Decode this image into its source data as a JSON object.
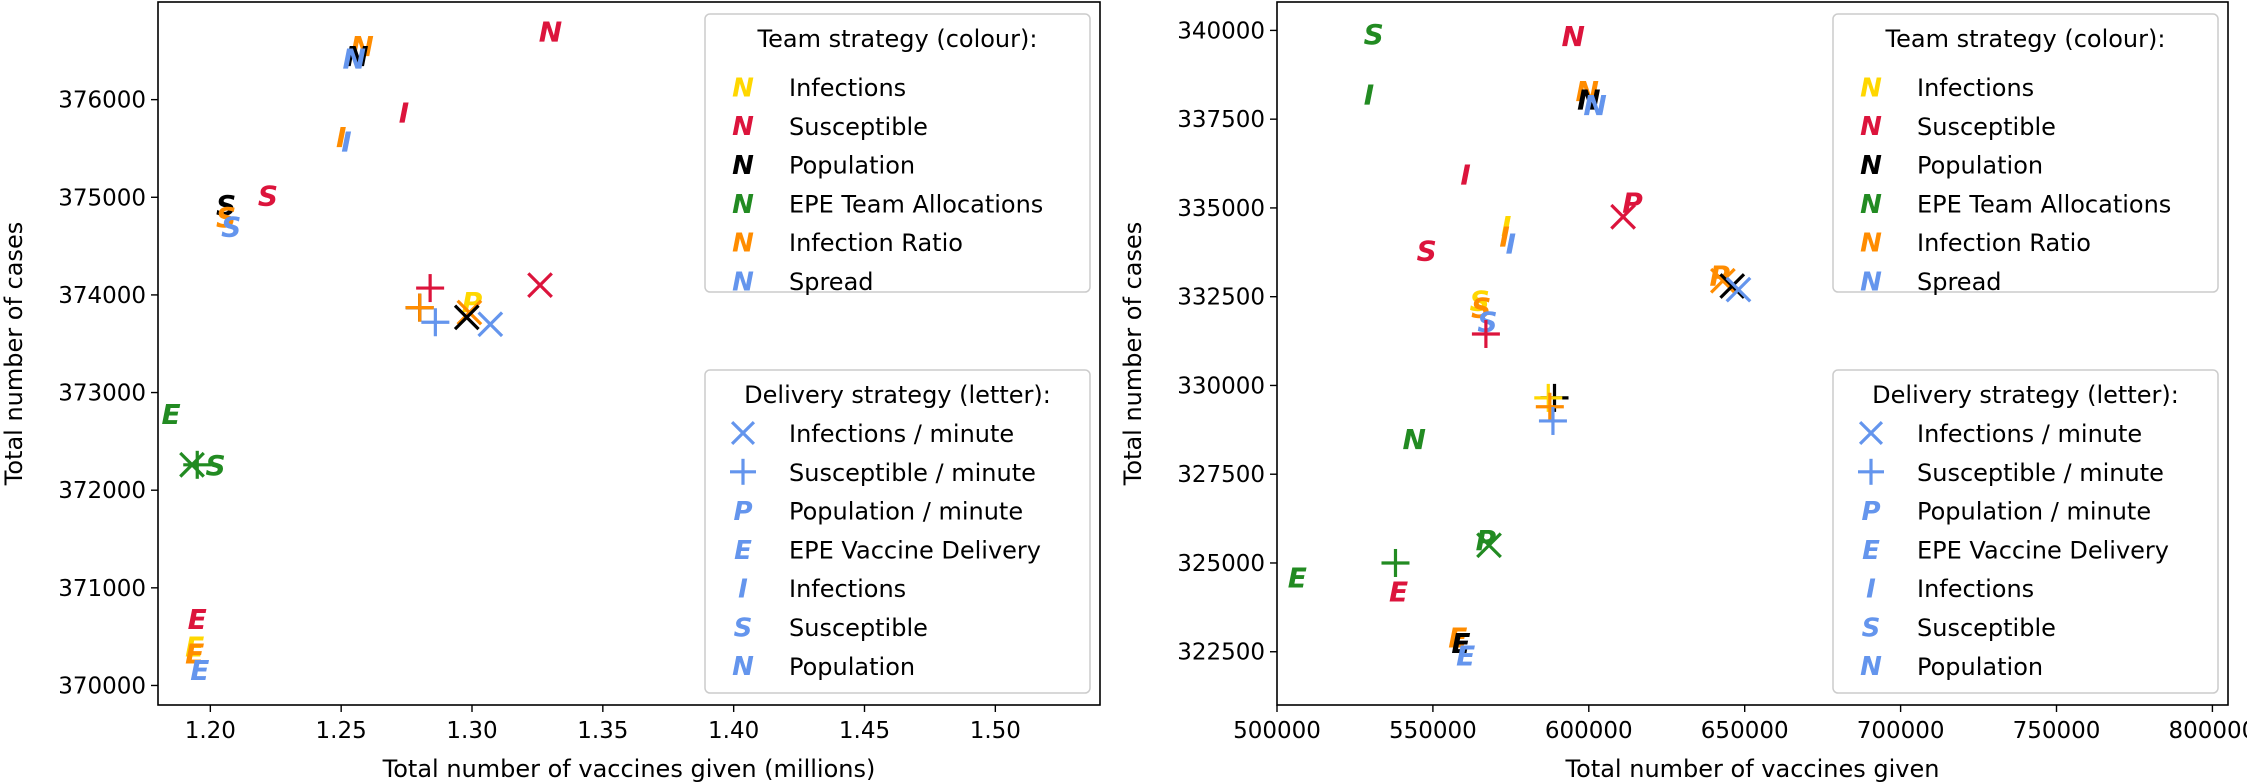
{
  "colors": {
    "Infections": "#FFD700",
    "Susceptible": "#DC143C",
    "Population": "#000000",
    "EPE Team Allocations": "#228B22",
    "Infection Ratio": "#FF8C00",
    "Spread": "#6495ED"
  },
  "chart_data": [
    {
      "type": "scatter",
      "xlabel": "Total number of vaccines given (millions)",
      "ylabel": "Total number of cases",
      "xlim": [
        1.18,
        1.54
      ],
      "ylim": [
        369800,
        377000
      ],
      "xticks": [
        1.2,
        1.25,
        1.3,
        1.35,
        1.4,
        1.45,
        1.5
      ],
      "xtick_labels": [
        "1.20",
        "1.25",
        "1.30",
        "1.35",
        "1.40",
        "1.45",
        "1.50"
      ],
      "yticks": [
        370000,
        371000,
        372000,
        373000,
        374000,
        375000,
        376000
      ],
      "ytick_labels": [
        "370000",
        "371000",
        "372000",
        "373000",
        "374000",
        "375000",
        "376000"
      ],
      "grid": false,
      "legend_team_title": "Team strategy (colour):",
      "legend_delivery_title": "Delivery strategy (letter):",
      "legend_team": [
        {
          "label": "Infections",
          "color": "Infections"
        },
        {
          "label": "Susceptible",
          "color": "Susceptible"
        },
        {
          "label": "Population",
          "color": "Population"
        },
        {
          "label": "EPE Team Allocations",
          "color": "EPE Team Allocations"
        },
        {
          "label": "Infection Ratio",
          "color": "Infection Ratio"
        },
        {
          "label": "Spread",
          "color": "Spread"
        }
      ],
      "legend_delivery": [
        {
          "marker": "X",
          "label": "Infections / minute"
        },
        {
          "marker": "+",
          "label": "Susceptible / minute"
        },
        {
          "marker": "P",
          "label": "Population / minute"
        },
        {
          "marker": "E",
          "label": "EPE Vaccine Delivery"
        },
        {
          "marker": "I",
          "label": "Infections"
        },
        {
          "marker": "S",
          "label": "Susceptible"
        },
        {
          "marker": "N",
          "label": "Population"
        }
      ],
      "points": [
        {
          "team": "Infection Ratio",
          "marker": "N",
          "x": 1.258,
          "y": 376550
        },
        {
          "team": "Population",
          "marker": "N",
          "x": 1.256,
          "y": 376450
        },
        {
          "team": "Spread",
          "marker": "N",
          "x": 1.255,
          "y": 376420
        },
        {
          "team": "Susceptible",
          "marker": "N",
          "x": 1.33,
          "y": 376700
        },
        {
          "team": "Susceptible",
          "marker": "I",
          "x": 1.274,
          "y": 375870
        },
        {
          "team": "Infection Ratio",
          "marker": "I",
          "x": 1.25,
          "y": 375620
        },
        {
          "team": "Spread",
          "marker": "I",
          "x": 1.252,
          "y": 375570
        },
        {
          "team": "Susceptible",
          "marker": "S",
          "x": 1.222,
          "y": 375020
        },
        {
          "team": "Population",
          "marker": "S",
          "x": 1.206,
          "y": 374920
        },
        {
          "team": "Infection Ratio",
          "marker": "S",
          "x": 1.206,
          "y": 374800
        },
        {
          "team": "Spread",
          "marker": "S",
          "x": 1.208,
          "y": 374700
        },
        {
          "team": "Susceptible",
          "marker": "+",
          "x": 1.284,
          "y": 374070
        },
        {
          "team": "Population",
          "marker": "+",
          "x": 1.28,
          "y": 373870
        },
        {
          "team": "Infection Ratio",
          "marker": "+",
          "x": 1.28,
          "y": 373870
        },
        {
          "team": "Spread",
          "marker": "+",
          "x": 1.286,
          "y": 373720
        },
        {
          "team": "Infections",
          "marker": "P",
          "x": 1.3,
          "y": 373930
        },
        {
          "team": "Infection Ratio",
          "marker": "X",
          "x": 1.299,
          "y": 373820
        },
        {
          "team": "Population",
          "marker": "X",
          "x": 1.298,
          "y": 373770
        },
        {
          "team": "Spread",
          "marker": "X",
          "x": 1.307,
          "y": 373700
        },
        {
          "team": "Susceptible",
          "marker": "X",
          "x": 1.326,
          "y": 374100
        },
        {
          "team": "EPE Team Allocations",
          "marker": "E",
          "x": 1.185,
          "y": 372780
        },
        {
          "team": "EPE Team Allocations",
          "marker": "S",
          "x": 1.202,
          "y": 372260
        },
        {
          "team": "EPE Team Allocations",
          "marker": "X",
          "x": 1.193,
          "y": 372260
        },
        {
          "team": "EPE Team Allocations",
          "marker": "+",
          "x": 1.195,
          "y": 372260
        },
        {
          "team": "Susceptible",
          "marker": "E",
          "x": 1.195,
          "y": 370680
        },
        {
          "team": "Infections",
          "marker": "E",
          "x": 1.194,
          "y": 370400
        },
        {
          "team": "Infection Ratio",
          "marker": "E",
          "x": 1.194,
          "y": 370330
        },
        {
          "team": "Spread",
          "marker": "E",
          "x": 1.196,
          "y": 370160
        }
      ]
    },
    {
      "type": "scatter",
      "xlabel": "Total number of vaccines given",
      "ylabel": "Total number of cases",
      "xlim": [
        500000,
        805000
      ],
      "ylim": [
        321000,
        340800
      ],
      "xticks": [
        500000,
        550000,
        600000,
        650000,
        700000,
        750000,
        800000
      ],
      "xtick_labels": [
        "500000",
        "550000",
        "600000",
        "650000",
        "700000",
        "750000",
        "800000"
      ],
      "yticks": [
        322500,
        325000,
        327500,
        330000,
        332500,
        335000,
        337500,
        340000
      ],
      "ytick_labels": [
        "322500",
        "325000",
        "327500",
        "330000",
        "332500",
        "335000",
        "337500",
        "340000"
      ],
      "grid": false,
      "legend_team_title": "Team strategy (colour):",
      "legend_delivery_title": "Delivery strategy (letter):",
      "legend_team": [
        {
          "label": "Infections",
          "color": "Infections"
        },
        {
          "label": "Susceptible",
          "color": "Susceptible"
        },
        {
          "label": "Population",
          "color": "Population"
        },
        {
          "label": "EPE Team Allocations",
          "color": "EPE Team Allocations"
        },
        {
          "label": "Infection Ratio",
          "color": "Infection Ratio"
        },
        {
          "label": "Spread",
          "color": "Spread"
        }
      ],
      "legend_delivery": [
        {
          "marker": "X",
          "label": "Infections / minute"
        },
        {
          "marker": "+",
          "label": "Susceptible / minute"
        },
        {
          "marker": "P",
          "label": "Population / minute"
        },
        {
          "marker": "E",
          "label": "EPE Vaccine Delivery"
        },
        {
          "marker": "I",
          "label": "Infections"
        },
        {
          "marker": "S",
          "label": "Susceptible"
        },
        {
          "marker": "N",
          "label": "Population"
        }
      ],
      "points": [
        {
          "team": "EPE Team Allocations",
          "marker": "S",
          "x": 531000,
          "y": 339900
        },
        {
          "team": "Susceptible",
          "marker": "N",
          "x": 595000,
          "y": 339850
        },
        {
          "team": "EPE Team Allocations",
          "marker": "I",
          "x": 529500,
          "y": 338200
        },
        {
          "team": "Infection Ratio",
          "marker": "N",
          "x": 599500,
          "y": 338300
        },
        {
          "team": "Population",
          "marker": "N",
          "x": 600000,
          "y": 338050
        },
        {
          "team": "Spread",
          "marker": "N",
          "x": 602000,
          "y": 337900
        },
        {
          "team": "Susceptible",
          "marker": "I",
          "x": 560500,
          "y": 335950
        },
        {
          "team": "Susceptible",
          "marker": "P",
          "x": 614000,
          "y": 335150
        },
        {
          "team": "Susceptible",
          "marker": "X",
          "x": 611000,
          "y": 334750
        },
        {
          "team": "Infections",
          "marker": "I",
          "x": 573500,
          "y": 334500
        },
        {
          "team": "Infection Ratio",
          "marker": "I",
          "x": 573000,
          "y": 334200
        },
        {
          "team": "Spread",
          "marker": "I",
          "x": 575000,
          "y": 334000
        },
        {
          "team": "Susceptible",
          "marker": "S",
          "x": 548000,
          "y": 333800
        },
        {
          "team": "Infection Ratio",
          "marker": "P",
          "x": 642000,
          "y": 333100
        },
        {
          "team": "Infection Ratio",
          "marker": "X",
          "x": 643000,
          "y": 332950
        },
        {
          "team": "Population",
          "marker": "X",
          "x": 646000,
          "y": 332800
        },
        {
          "team": "Spread",
          "marker": "X",
          "x": 648000,
          "y": 332700
        },
        {
          "team": "Infections",
          "marker": "S",
          "x": 565000,
          "y": 332400
        },
        {
          "team": "Infection Ratio",
          "marker": "S",
          "x": 565500,
          "y": 332200
        },
        {
          "team": "Spread",
          "marker": "S",
          "x": 567500,
          "y": 331800
        },
        {
          "team": "Susceptible",
          "marker": "+",
          "x": 567000,
          "y": 331450
        },
        {
          "team": "Population",
          "marker": "+",
          "x": 589000,
          "y": 329650
        },
        {
          "team": "Infections",
          "marker": "+",
          "x": 587000,
          "y": 329650
        },
        {
          "team": "Infection Ratio",
          "marker": "+",
          "x": 587500,
          "y": 329400
        },
        {
          "team": "Spread",
          "marker": "+",
          "x": 588500,
          "y": 329000
        },
        {
          "team": "EPE Team Allocations",
          "marker": "N",
          "x": 544000,
          "y": 328500
        },
        {
          "team": "EPE Team Allocations",
          "marker": "P",
          "x": 567000,
          "y": 325650
        },
        {
          "team": "EPE Team Allocations",
          "marker": "X",
          "x": 568000,
          "y": 325500
        },
        {
          "team": "EPE Team Allocations",
          "marker": "+",
          "x": 538000,
          "y": 325000
        },
        {
          "team": "EPE Team Allocations",
          "marker": "E",
          "x": 506500,
          "y": 324600
        },
        {
          "team": "Susceptible",
          "marker": "E",
          "x": 539000,
          "y": 324200
        },
        {
          "team": "Infection Ratio",
          "marker": "E",
          "x": 558000,
          "y": 322900
        },
        {
          "team": "Population",
          "marker": "E",
          "x": 559000,
          "y": 322750
        },
        {
          "team": "Spread",
          "marker": "E",
          "x": 560500,
          "y": 322400
        }
      ]
    }
  ]
}
